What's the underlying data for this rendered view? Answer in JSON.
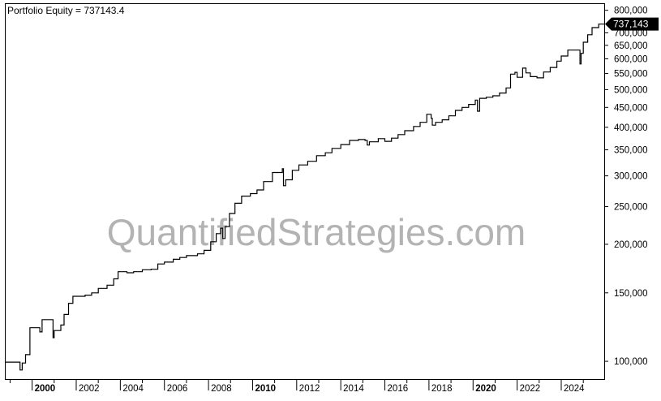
{
  "title": "Portfolio Equity = 737143.4",
  "watermark": "QuantifiedStrategies.com",
  "chart_data": {
    "type": "line",
    "title": "Portfolio Equity = 737143.4",
    "xlabel": "",
    "ylabel": "",
    "y_scale": "log",
    "ylim": [
      90000,
      830000
    ],
    "xlim": [
      1998.8,
      2025.95
    ],
    "grid": false,
    "legend": "none",
    "line_color": "#000000",
    "step": true,
    "y_ticks": [
      {
        "value": 100000,
        "label": "100,000"
      },
      {
        "value": 150000,
        "label": "150,000"
      },
      {
        "value": 200000,
        "label": "200,000"
      },
      {
        "value": 250000,
        "label": "250,000"
      },
      {
        "value": 300000,
        "label": "300,000"
      },
      {
        "value": 350000,
        "label": "350,000"
      },
      {
        "value": 400000,
        "label": "400,000"
      },
      {
        "value": 450000,
        "label": "450,000"
      },
      {
        "value": 500000,
        "label": "500,000"
      },
      {
        "value": 550000,
        "label": "550,000"
      },
      {
        "value": 600000,
        "label": "600,000"
      },
      {
        "value": 650000,
        "label": "650,000"
      },
      {
        "value": 700000,
        "label": "700,000"
      },
      {
        "value": 800000,
        "label": "800,000"
      }
    ],
    "x_ticks": [
      {
        "value": 2000,
        "label": "2000",
        "major": true
      },
      {
        "value": 2002,
        "label": "2002",
        "major": false
      },
      {
        "value": 2004,
        "label": "2004",
        "major": false
      },
      {
        "value": 2006,
        "label": "2006",
        "major": false
      },
      {
        "value": 2008,
        "label": "2008",
        "major": false
      },
      {
        "value": 2010,
        "label": "2010",
        "major": true
      },
      {
        "value": 2012,
        "label": "2012",
        "major": false
      },
      {
        "value": 2014,
        "label": "2014",
        "major": false
      },
      {
        "value": 2016,
        "label": "2016",
        "major": false
      },
      {
        "value": 2018,
        "label": "2018",
        "major": false
      },
      {
        "value": 2020,
        "label": "2020",
        "major": true
      },
      {
        "value": 2022,
        "label": "2022",
        "major": false
      },
      {
        "value": 2024,
        "label": "2024",
        "major": false
      }
    ],
    "last_value": 737143.4,
    "last_value_label": "737,143",
    "last_value_label_bg": "#000000",
    "last_value_label_color": "#ffffff",
    "series": [
      {
        "values": [
          [
            1998.8,
            99500
          ],
          [
            1999.4,
            99500
          ],
          [
            1999.45,
            95000
          ],
          [
            1999.55,
            99000
          ],
          [
            1999.7,
            104000
          ],
          [
            1999.9,
            122000
          ],
          [
            2000.3,
            122000
          ],
          [
            2000.35,
            119000
          ],
          [
            2000.45,
            128000
          ],
          [
            2000.9,
            128000
          ],
          [
            2000.95,
            115000
          ],
          [
            2001.0,
            120000
          ],
          [
            2001.3,
            124000
          ],
          [
            2001.45,
            132000
          ],
          [
            2001.65,
            141000
          ],
          [
            2001.85,
            147000
          ],
          [
            2002.4,
            148000
          ],
          [
            2002.7,
            150000
          ],
          [
            2003.0,
            154000
          ],
          [
            2003.4,
            157000
          ],
          [
            2003.7,
            163000
          ],
          [
            2003.9,
            170000
          ],
          [
            2004.3,
            169000
          ],
          [
            2004.6,
            170000
          ],
          [
            2005.0,
            172000
          ],
          [
            2005.4,
            172500
          ],
          [
            2005.7,
            178000
          ],
          [
            2006.0,
            180000
          ],
          [
            2006.4,
            183000
          ],
          [
            2006.7,
            185000
          ],
          [
            2007.0,
            187000
          ],
          [
            2007.5,
            189000
          ],
          [
            2007.8,
            193000
          ],
          [
            2008.1,
            203000
          ],
          [
            2008.35,
            213000
          ],
          [
            2008.55,
            220000
          ],
          [
            2008.65,
            207000
          ],
          [
            2008.75,
            222000
          ],
          [
            2008.95,
            240000
          ],
          [
            2009.2,
            255000
          ],
          [
            2009.5,
            266000
          ],
          [
            2009.9,
            270000
          ],
          [
            2010.2,
            276000
          ],
          [
            2010.5,
            290000
          ],
          [
            2010.9,
            306000
          ],
          [
            2011.35,
            313000
          ],
          [
            2011.4,
            283000
          ],
          [
            2011.5,
            293000
          ],
          [
            2011.8,
            310000
          ],
          [
            2012.1,
            320000
          ],
          [
            2012.5,
            327000
          ],
          [
            2012.9,
            338000
          ],
          [
            2013.3,
            344000
          ],
          [
            2013.6,
            353000
          ],
          [
            2014.0,
            361000
          ],
          [
            2014.4,
            370000
          ],
          [
            2014.8,
            372000
          ],
          [
            2015.1,
            370000
          ],
          [
            2015.2,
            360000
          ],
          [
            2015.3,
            367000
          ],
          [
            2015.7,
            374000
          ],
          [
            2016.0,
            368000
          ],
          [
            2016.3,
            375000
          ],
          [
            2016.6,
            383000
          ],
          [
            2016.9,
            392000
          ],
          [
            2017.3,
            402000
          ],
          [
            2017.6,
            412000
          ],
          [
            2017.9,
            432000
          ],
          [
            2018.1,
            422000
          ],
          [
            2018.15,
            405000
          ],
          [
            2018.3,
            412000
          ],
          [
            2018.6,
            418000
          ],
          [
            2018.9,
            428000
          ],
          [
            2019.2,
            442000
          ],
          [
            2019.5,
            450000
          ],
          [
            2019.8,
            458000
          ],
          [
            2020.1,
            470000
          ],
          [
            2020.2,
            440000
          ],
          [
            2020.3,
            475000
          ],
          [
            2020.6,
            478000
          ],
          [
            2020.9,
            482000
          ],
          [
            2021.2,
            490000
          ],
          [
            2021.5,
            505000
          ],
          [
            2021.7,
            548000
          ],
          [
            2021.9,
            554000
          ],
          [
            2022.0,
            538000
          ],
          [
            2022.25,
            568000
          ],
          [
            2022.4,
            552000
          ],
          [
            2022.6,
            540000
          ],
          [
            2022.9,
            536000
          ],
          [
            2023.2,
            555000
          ],
          [
            2023.5,
            570000
          ],
          [
            2023.8,
            592000
          ],
          [
            2024.0,
            610000
          ],
          [
            2024.3,
            632000
          ],
          [
            2024.8,
            632000
          ],
          [
            2024.85,
            582000
          ],
          [
            2024.9,
            620000
          ],
          [
            2025.0,
            662000
          ],
          [
            2025.2,
            692000
          ],
          [
            2025.4,
            722000
          ],
          [
            2025.7,
            737143.4
          ]
        ]
      }
    ]
  }
}
